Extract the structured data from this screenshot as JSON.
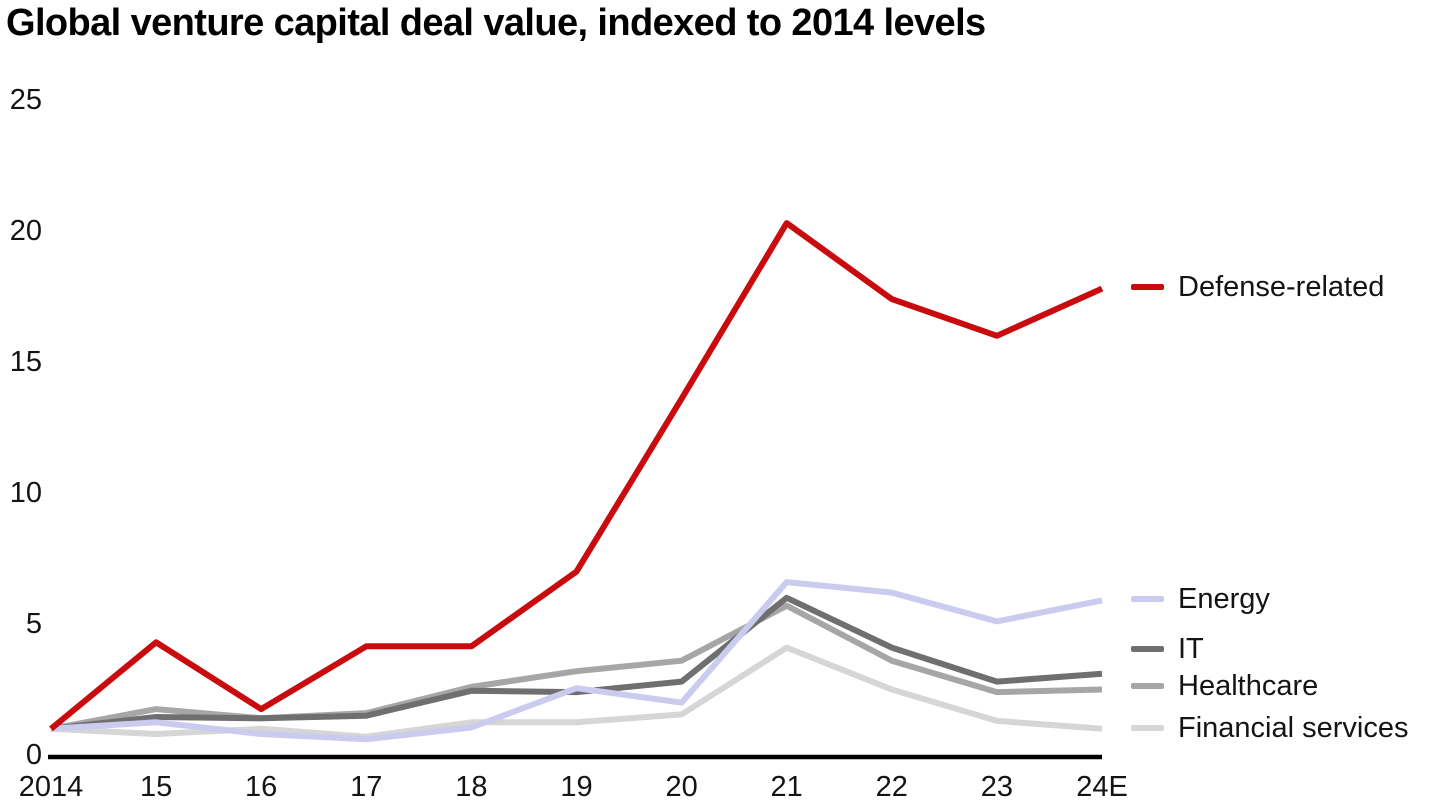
{
  "chart_data": {
    "type": "line",
    "title": "Global venture capital deal value, indexed to 2014 levels",
    "categories": [
      "2014",
      "15",
      "16",
      "17",
      "18",
      "19",
      "20",
      "21",
      "22",
      "23",
      "24E"
    ],
    "y_ticks": [
      "25",
      "20",
      "15",
      "10",
      "5",
      "0"
    ],
    "ylim": [
      0,
      25
    ],
    "grid": "off",
    "legend_position": "right-of-line-ends",
    "axis_color": "#000000",
    "series": [
      {
        "name": "Financial services",
        "slug": "financial-services",
        "color": "#d6d6d6",
        "values": [
          1.0,
          0.8,
          1.0,
          0.7,
          1.25,
          1.25,
          1.55,
          4.1,
          2.5,
          1.3,
          1.0
        ]
      },
      {
        "name": "Healthcare",
        "slug": "healthcare",
        "color": "#a6a6a6",
        "values": [
          1.0,
          1.75,
          1.4,
          1.6,
          2.6,
          3.2,
          3.6,
          5.7,
          3.6,
          2.4,
          2.5
        ]
      },
      {
        "name": "IT",
        "slug": "it",
        "color": "#6f6f6f",
        "values": [
          1.0,
          1.45,
          1.4,
          1.5,
          2.45,
          2.4,
          2.8,
          6.0,
          4.1,
          2.8,
          3.1
        ]
      },
      {
        "name": "Energy",
        "slug": "energy",
        "color": "#cbcbf0",
        "values": [
          1.0,
          1.25,
          0.8,
          0.6,
          1.05,
          2.55,
          2.0,
          6.6,
          6.2,
          5.1,
          5.9
        ]
      },
      {
        "name": "Defense-related",
        "slug": "defense-related",
        "color": "#c90b0e",
        "values": [
          1.0,
          4.3,
          1.75,
          4.15,
          4.15,
          7.0,
          13.6,
          20.3,
          17.4,
          16.0,
          17.8
        ]
      }
    ],
    "legend_order": [
      "Defense-related",
      "Energy",
      "IT",
      "Healthcare",
      "Financial services"
    ]
  }
}
